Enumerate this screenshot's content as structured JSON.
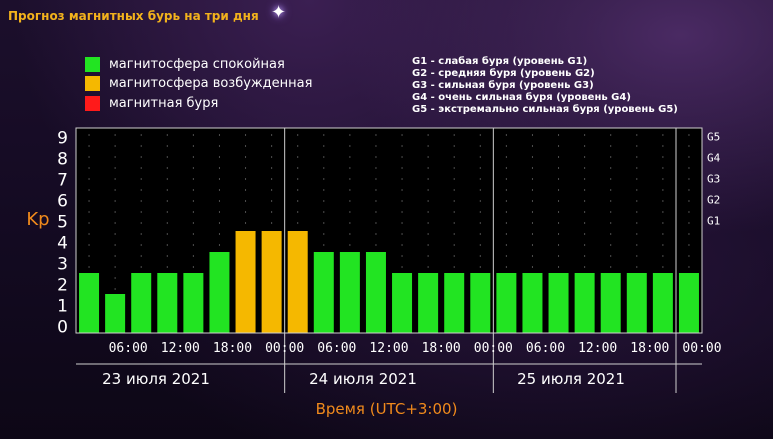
{
  "header": {
    "title": "Прогноз магнитных бурь на три дня",
    "sparkle_glyph": "✦"
  },
  "legend": [
    {
      "label": "магнитосфера спокойная",
      "color": "#22e422"
    },
    {
      "label": "магнитосфера возбужденная",
      "color": "#f5b800"
    },
    {
      "label": "магнитная буря",
      "color": "#ff1a1a"
    }
  ],
  "g_legend": [
    "G1 - слабая буря (уровень G1)",
    "G2 - средняя буря (уровень G2)",
    "G3 - сильная буря (уровень G3)",
    "G4 - очень сильная буря (уровень G4)",
    "G5 - экстремально сильная буря (уровень G5)"
  ],
  "chart_data": {
    "type": "bar",
    "ylabel": "Kp",
    "xlabel": "Время (UTC+3:00)",
    "ylim": [
      0,
      9
    ],
    "yticks": [
      "0",
      "1",
      "2",
      "3",
      "4",
      "5",
      "6",
      "7",
      "8",
      "9"
    ],
    "g_ticks": [
      {
        "label": "G1",
        "y": 5
      },
      {
        "label": "G2",
        "y": 6
      },
      {
        "label": "G3",
        "y": 7
      },
      {
        "label": "G4",
        "y": 8
      },
      {
        "label": "G5",
        "y": 9
      }
    ],
    "xticks": [
      "06:00",
      "12:00",
      "18:00",
      "00:00",
      "06:00",
      "12:00",
      "18:00",
      "00:00",
      "06:00",
      "12:00",
      "18:00",
      "00:00"
    ],
    "days": [
      "23 июля 2021",
      "24 июля 2021",
      "25 июля 2021"
    ],
    "values": [
      2,
      1,
      2,
      2,
      2,
      3,
      4,
      4,
      4,
      3,
      3,
      3,
      2,
      2,
      2,
      2,
      2,
      2,
      2,
      2,
      2,
      2,
      2,
      2
    ],
    "levels": [
      "quiet",
      "quiet",
      "quiet",
      "quiet",
      "quiet",
      "quiet",
      "excited",
      "excited",
      "excited",
      "quiet",
      "quiet",
      "quiet",
      "quiet",
      "quiet",
      "quiet",
      "quiet",
      "quiet",
      "quiet",
      "quiet",
      "quiet",
      "quiet",
      "quiet",
      "quiet",
      "quiet"
    ],
    "colors": {
      "quiet": "#22e422",
      "excited": "#f5b800",
      "storm": "#ff1a1a"
    },
    "grid": true,
    "grid_style": "dotted"
  }
}
